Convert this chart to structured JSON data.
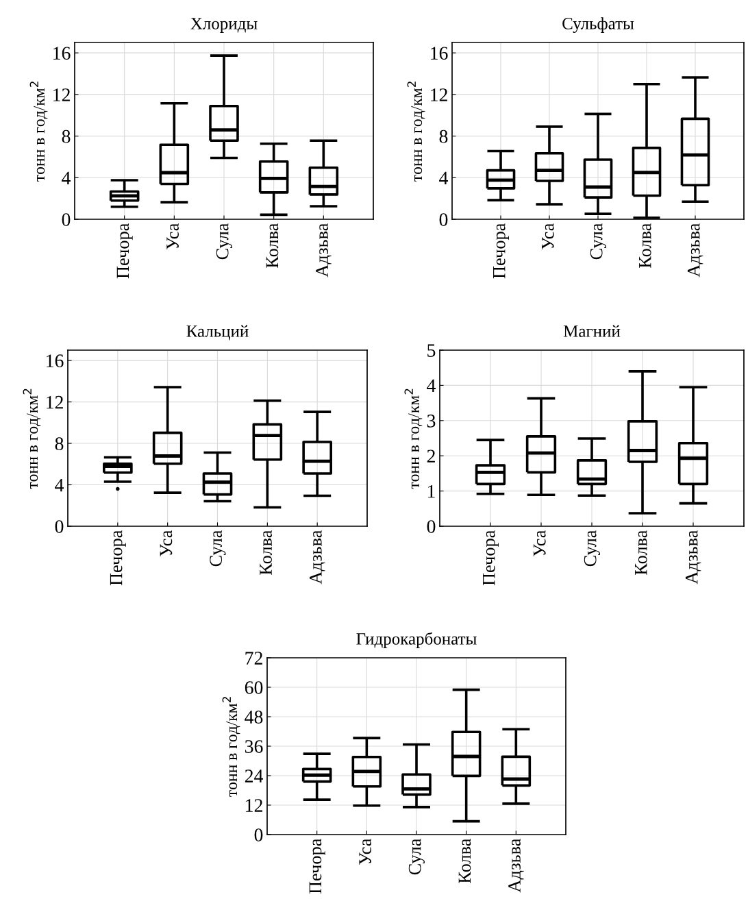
{
  "chart_data": [
    {
      "type": "box",
      "title": "Хлориды",
      "ylabel": "тонн в год/км$^{2}$",
      "categories": [
        "Печора",
        "Уса",
        "Сула",
        "Колва",
        "Адзьва"
      ],
      "ylim": [
        0,
        17
      ],
      "yticks": [
        0,
        4,
        8,
        12,
        16
      ],
      "grid": true,
      "boxes": [
        {
          "low": 1.2,
          "q1": 1.8,
          "median": 2.25,
          "q3": 2.67,
          "high": 3.76
        },
        {
          "low": 1.64,
          "q1": 3.39,
          "median": 4.48,
          "q3": 7.17,
          "high": 11.15
        },
        {
          "low": 5.9,
          "q1": 7.56,
          "median": 8.59,
          "q3": 10.89,
          "high": 15.74
        },
        {
          "low": 0.44,
          "q1": 2.58,
          "median": 3.93,
          "q3": 5.55,
          "high": 7.26
        },
        {
          "low": 1.25,
          "q1": 2.38,
          "median": 3.15,
          "q3": 4.96,
          "high": 7.56
        }
      ]
    },
    {
      "type": "box",
      "title": "Сульфаты",
      "ylabel": "тонн в год/км$^{2}$",
      "categories": [
        "Печора",
        "Уса",
        "Сула",
        "Колва",
        "Адзьва"
      ],
      "ylim": [
        0,
        17
      ],
      "yticks": [
        0,
        4,
        8,
        12,
        16
      ],
      "grid": true,
      "boxes": [
        {
          "low": 1.84,
          "q1": 2.97,
          "median": 3.76,
          "q3": 4.7,
          "high": 6.56
        },
        {
          "low": 1.44,
          "q1": 3.69,
          "median": 4.7,
          "q3": 6.34,
          "high": 8.9
        },
        {
          "low": 0.52,
          "q1": 2.1,
          "median": 3.1,
          "q3": 5.73,
          "high": 10.12
        },
        {
          "low": 0.15,
          "q1": 2.27,
          "median": 4.5,
          "q3": 6.86,
          "high": 13.0
        },
        {
          "low": 1.7,
          "q1": 3.28,
          "median": 6.19,
          "q3": 9.66,
          "high": 13.64
        }
      ]
    },
    {
      "type": "box",
      "title": "Кальций",
      "ylabel": "тонн в год/км$^{2}$",
      "categories": [
        "Печора",
        "Уса",
        "Сула",
        "Колва",
        "Адзьва"
      ],
      "ylim": [
        0,
        17
      ],
      "yticks": [
        0,
        4,
        8,
        12,
        16
      ],
      "grid": true,
      "boxes": [
        {
          "low": 4.3,
          "q1": 5.18,
          "median": 5.79,
          "q3": 6.04,
          "high": 6.65,
          "outliers": [
            3.6
          ]
        },
        {
          "low": 3.23,
          "q1": 6.04,
          "median": 6.78,
          "q3": 9.02,
          "high": 13.43
        },
        {
          "low": 2.41,
          "q1": 3.07,
          "median": 4.26,
          "q3": 5.09,
          "high": 7.11
        },
        {
          "low": 1.82,
          "q1": 6.43,
          "median": 8.76,
          "q3": 9.83,
          "high": 12.12
        },
        {
          "low": 2.94,
          "q1": 5.09,
          "median": 6.28,
          "q3": 8.14,
          "high": 11.04
        }
      ]
    },
    {
      "type": "box",
      "title": "Магний",
      "ylabel": "тонн в год/км$^{2}$",
      "categories": [
        "Печора",
        "Уса",
        "Сула",
        "Колва",
        "Адзьва"
      ],
      "ylim": [
        0,
        5
      ],
      "yticks": [
        0,
        1,
        2,
        3,
        4,
        5
      ],
      "grid": true,
      "boxes": [
        {
          "low": 0.92,
          "q1": 1.2,
          "median": 1.53,
          "q3": 1.73,
          "high": 2.45
        },
        {
          "low": 0.89,
          "q1": 1.53,
          "median": 2.08,
          "q3": 2.55,
          "high": 3.63
        },
        {
          "low": 0.87,
          "q1": 1.2,
          "median": 1.34,
          "q3": 1.87,
          "high": 2.49
        },
        {
          "low": 0.37,
          "q1": 1.83,
          "median": 2.15,
          "q3": 2.98,
          "high": 4.4
        },
        {
          "low": 0.65,
          "q1": 1.2,
          "median": 1.93,
          "q3": 2.36,
          "high": 3.95
        }
      ]
    },
    {
      "type": "box",
      "title": "Гидрокарбонаты",
      "ylabel": "тонн в год/км$^{2}$",
      "categories": [
        "Печора",
        "Уса",
        "Сула",
        "Колва",
        "Адзьва"
      ],
      "ylim": [
        0,
        72
      ],
      "yticks": [
        0,
        12,
        24,
        36,
        48,
        60,
        72
      ],
      "grid": true,
      "boxes": [
        {
          "low": 14.2,
          "q1": 21.6,
          "median": 24.2,
          "q3": 26.7,
          "high": 32.9
        },
        {
          "low": 11.8,
          "q1": 19.6,
          "median": 25.7,
          "q3": 31.6,
          "high": 39.3
        },
        {
          "low": 11.2,
          "q1": 16.3,
          "median": 18.6,
          "q3": 24.5,
          "high": 36.7
        },
        {
          "low": 5.4,
          "q1": 23.9,
          "median": 31.8,
          "q3": 41.8,
          "high": 59.0
        },
        {
          "low": 12.6,
          "q1": 20.0,
          "median": 22.6,
          "q3": 31.7,
          "high": 42.9
        }
      ]
    }
  ]
}
